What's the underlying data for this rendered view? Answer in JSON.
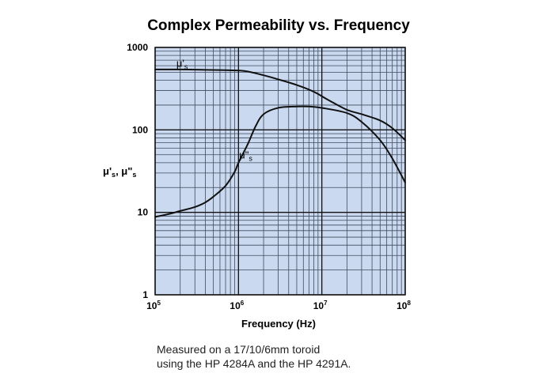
{
  "chart_data": {
    "type": "line",
    "title": "Complex Permeability vs. Frequency",
    "xlabel": "Frequency (Hz)",
    "ylabel": {
      "prefix1": "μ'",
      "sub1": "s",
      "sep": ", ",
      "prefix2": "μ\"",
      "sub2": "s"
    },
    "xscale": "log",
    "yscale": "log",
    "xlim": [
      100000,
      100000000
    ],
    "ylim": [
      1,
      1000
    ],
    "grid": true,
    "x_ticks": [
      {
        "value": 100000,
        "base": "10",
        "exp": "5"
      },
      {
        "value": 1000000,
        "base": "10",
        "exp": "6"
      },
      {
        "value": 10000000,
        "base": "10",
        "exp": "7"
      },
      {
        "value": 100000000,
        "base": "10",
        "exp": "8"
      }
    ],
    "y_ticks": [
      {
        "value": 1,
        "label": "1"
      },
      {
        "value": 10,
        "label": "10"
      },
      {
        "value": 100,
        "label": "100"
      },
      {
        "value": 1000,
        "label": "1000"
      }
    ],
    "series": [
      {
        "name": "μ's",
        "label": {
          "prefix": "μ'",
          "sub": "s",
          "at": [
            180000,
            580
          ]
        },
        "points": [
          [
            100000,
            540
          ],
          [
            200000,
            540
          ],
          [
            400000,
            535
          ],
          [
            700000,
            530
          ],
          [
            1000000,
            525
          ],
          [
            1300000,
            510
          ],
          [
            2000000,
            460
          ],
          [
            3000000,
            410
          ],
          [
            5000000,
            350
          ],
          [
            8000000,
            290
          ],
          [
            12000000,
            230
          ],
          [
            20000000,
            175
          ],
          [
            30000000,
            155
          ],
          [
            50000000,
            130
          ],
          [
            70000000,
            105
          ],
          [
            100000000,
            75
          ]
        ]
      },
      {
        "name": "μ\"s",
        "label": {
          "prefix": "μ\"",
          "sub": "s",
          "at": [
            1020000,
            45
          ]
        },
        "points": [
          [
            100000,
            8.8
          ],
          [
            150000,
            9.6
          ],
          [
            200000,
            10.4
          ],
          [
            300000,
            11.6
          ],
          [
            400000,
            13.2
          ],
          [
            500000,
            15.5
          ],
          [
            700000,
            21
          ],
          [
            900000,
            31
          ],
          [
            1000000,
            40
          ],
          [
            1300000,
            68
          ],
          [
            1600000,
            110
          ],
          [
            2000000,
            155
          ],
          [
            3000000,
            185
          ],
          [
            5000000,
            192
          ],
          [
            7000000,
            192
          ],
          [
            10000000,
            185
          ],
          [
            20000000,
            160
          ],
          [
            30000000,
            125
          ],
          [
            50000000,
            75
          ],
          [
            70000000,
            45
          ],
          [
            100000000,
            23
          ]
        ]
      }
    ]
  },
  "notes": {
    "line1": "Measured on a 17/10/6mm toroid",
    "line2": "using the HP 4284A and the HP 4291A."
  },
  "colors": {
    "plot_bg": "#cad9ef",
    "grid": "#3f4a5c",
    "curve": "#111111"
  }
}
